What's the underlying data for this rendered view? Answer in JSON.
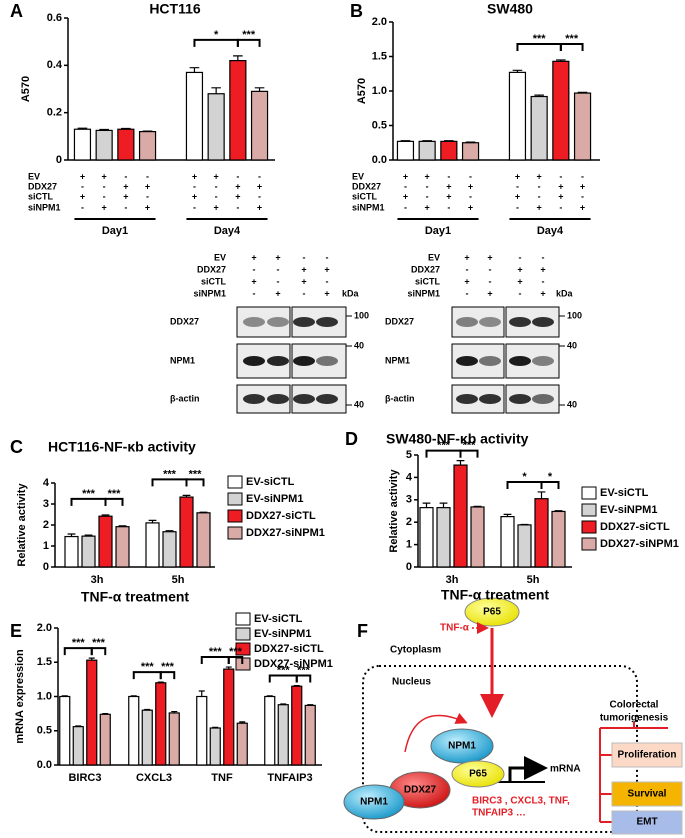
{
  "panel_labels": [
    "A",
    "B",
    "C",
    "D",
    "E",
    "F"
  ],
  "chart_data": [
    {
      "type": "bar",
      "title": "HCT116",
      "ylabel": "A570",
      "categories": [
        "Day1",
        "Day4"
      ],
      "series": [
        {
          "color": "#ffffff",
          "values": [
            0.13,
            0.37
          ],
          "errors": [
            0.004,
            0.02
          ]
        },
        {
          "color": "#d3d3d3",
          "values": [
            0.125,
            0.28
          ],
          "errors": [
            0.004,
            0.025
          ]
        },
        {
          "color": "#ee1d23",
          "values": [
            0.13,
            0.42
          ],
          "errors": [
            0.003,
            0.02
          ]
        },
        {
          "color": "#d9aaa6",
          "values": [
            0.12,
            0.29
          ],
          "errors": [
            0.002,
            0.015
          ]
        }
      ],
      "conditions": [
        {
          "label": "EV",
          "signs": [
            "+",
            "+",
            "-",
            "-",
            "+",
            "+",
            "-",
            "-"
          ]
        },
        {
          "label": "DDX27",
          "signs": [
            "-",
            "-",
            "+",
            "+",
            "-",
            "-",
            "+",
            "+"
          ]
        },
        {
          "label": "siCTL",
          "signs": [
            "+",
            "-",
            "+",
            "-",
            "+",
            "-",
            "+",
            "-"
          ]
        },
        {
          "label": "siNPM1",
          "signs": [
            "-",
            "+",
            "-",
            "+",
            "-",
            "+",
            "-",
            "+"
          ]
        }
      ],
      "annotations": [
        "*",
        "***"
      ],
      "ylim": [
        0,
        0.6
      ],
      "yticks": [
        0,
        0.2,
        0.4,
        0.6
      ]
    },
    {
      "type": "bar",
      "title": "SW480",
      "ylabel": "A570",
      "categories": [
        "Day1",
        "Day4"
      ],
      "series": [
        {
          "color": "#ffffff",
          "values": [
            0.27,
            1.27
          ],
          "errors": [
            0.01,
            0.03
          ]
        },
        {
          "color": "#d3d3d3",
          "values": [
            0.27,
            0.92
          ],
          "errors": [
            0.01,
            0.02
          ]
        },
        {
          "color": "#ee1d23",
          "values": [
            0.27,
            1.43
          ],
          "errors": [
            0.01,
            0.02
          ]
        },
        {
          "color": "#d9aaa6",
          "values": [
            0.25,
            0.97
          ],
          "errors": [
            0.01,
            0.01
          ]
        }
      ],
      "conditions": [
        {
          "label": "EV",
          "signs": [
            "+",
            "+",
            "-",
            "-",
            "+",
            "+",
            "-",
            "-"
          ]
        },
        {
          "label": "DDX27",
          "signs": [
            "-",
            "-",
            "+",
            "+",
            "-",
            "-",
            "+",
            "+"
          ]
        },
        {
          "label": "siCTL",
          "signs": [
            "+",
            "-",
            "+",
            "-",
            "+",
            "-",
            "+",
            "-"
          ]
        },
        {
          "label": "siNPM1",
          "signs": [
            "-",
            "+",
            "-",
            "+",
            "-",
            "+",
            "-",
            "+"
          ]
        }
      ],
      "annotations": [
        "***",
        "***"
      ],
      "ylim": [
        0,
        2
      ],
      "yticks": [
        {
          "value": 0,
          "label": "0.0"
        },
        0.5,
        {
          "value": 1,
          "label": "1.0"
        },
        1.5,
        {
          "value": 2,
          "label": "2.0"
        }
      ]
    },
    {
      "type": "bar",
      "title": "HCT116-NF-κb activity",
      "ylabel": "Relative activity",
      "xlabel": "TNF-α treatment",
      "categories": [
        "3h",
        "5h"
      ],
      "series": [
        {
          "name": "EV-siCTL",
          "color": "#ffffff",
          "values": [
            1.45,
            2.1
          ],
          "errors": [
            0.12,
            0.12
          ]
        },
        {
          "name": "EV-siNPM1",
          "color": "#d3d3d3",
          "values": [
            1.47,
            1.68
          ],
          "errors": [
            0.05,
            0.05
          ]
        },
        {
          "name": "DDX27-siCTL",
          "color": "#ee1d23",
          "values": [
            2.42,
            3.33
          ],
          "errors": [
            0.06,
            0.08
          ]
        },
        {
          "name": "DDX27-siNPM1",
          "color": "#d9aaa6",
          "values": [
            1.92,
            2.58
          ],
          "errors": [
            0.04,
            0.03
          ]
        }
      ],
      "annotations": [
        "***",
        "***",
        "***",
        "***"
      ],
      "ylim": [
        0,
        4
      ],
      "yticks": [
        0,
        1,
        2,
        3,
        4
      ]
    },
    {
      "type": "bar",
      "title": "SW480-NF-κb activity",
      "ylabel": "Relative activity",
      "xlabel": "TNF-α treatment",
      "categories": [
        "3h",
        "5h"
      ],
      "series": [
        {
          "name": "EV-siCTL",
          "color": "#ffffff",
          "values": [
            2.65,
            2.25
          ],
          "errors": [
            0.2,
            0.1
          ]
        },
        {
          "name": "EV-siNPM1",
          "color": "#d3d3d3",
          "values": [
            2.65,
            1.88
          ],
          "errors": [
            0.2,
            0.02
          ]
        },
        {
          "name": "DDX27-siCTL",
          "color": "#ee1d23",
          "values": [
            4.55,
            3.05
          ],
          "errors": [
            0.2,
            0.3
          ]
        },
        {
          "name": "DDX27-siNPM1",
          "color": "#d9aaa6",
          "values": [
            2.68,
            2.48
          ],
          "errors": [
            0.03,
            0.03
          ]
        }
      ],
      "annotations": [
        "***",
        "***",
        "*",
        "*"
      ],
      "ylim": [
        0,
        5
      ],
      "yticks": [
        0,
        1,
        2,
        3,
        4,
        5
      ]
    },
    {
      "type": "bar",
      "ylabel": "mRNA expression",
      "categories": [
        "BIRC3",
        "CXCL3",
        "TNF",
        "TNFAIP3"
      ],
      "series": [
        {
          "name": "EV-siCTL",
          "color": "#ffffff",
          "values": [
            1.0,
            1.0,
            1.0,
            1.0
          ],
          "errors": [
            0.01,
            0.01,
            0.08,
            0.01
          ]
        },
        {
          "name": "EV-siNPM1",
          "color": "#d3d3d3",
          "values": [
            0.56,
            0.8,
            0.54,
            0.88
          ],
          "errors": [
            0.01,
            0.01,
            0.01,
            0.01
          ]
        },
        {
          "name": "DDX27-siCTL",
          "color": "#ee1d23",
          "values": [
            1.53,
            1.2,
            1.4,
            1.15
          ],
          "errors": [
            0.03,
            0.01,
            0.03,
            0.01
          ]
        },
        {
          "name": "DDX27-siNPM1",
          "color": "#d9aaa6",
          "values": [
            0.74,
            0.76,
            0.61,
            0.87
          ],
          "errors": [
            0.01,
            0.02,
            0.02,
            0.01
          ]
        }
      ],
      "annotations": [
        "***",
        "***",
        "***",
        "***",
        "***",
        "***",
        "***",
        "***"
      ],
      "ylim": [
        0,
        2
      ],
      "yticks": [
        {
          "value": 0,
          "label": "0.0"
        },
        0.5,
        {
          "value": 1,
          "label": "1.0"
        },
        1.5,
        {
          "value": 2,
          "label": "2.0"
        }
      ]
    }
  ],
  "blots": [
    {
      "conditions": [
        {
          "label": "EV",
          "signs": [
            "+",
            "+",
            "-",
            "-"
          ]
        },
        {
          "label": "DDX27",
          "signs": [
            "-",
            "-",
            "+",
            "+"
          ]
        },
        {
          "label": "siCTL",
          "signs": [
            "+",
            "-",
            "+",
            "-"
          ]
        },
        {
          "label": "siNPM1",
          "signs": [
            "-",
            "+",
            "-",
            "+"
          ]
        }
      ],
      "unit": "kDa",
      "rows": [
        {
          "label": "DDX27",
          "marker": 100
        },
        {
          "label": "NPM1",
          "marker": 40
        },
        {
          "label": "β-actin",
          "marker": 40
        }
      ]
    },
    {
      "conditions": [
        {
          "label": "EV",
          "signs": [
            "+",
            "+",
            "-",
            "-"
          ]
        },
        {
          "label": "DDX27",
          "signs": [
            "-",
            "-",
            "+",
            "+"
          ]
        },
        {
          "label": "siCTL",
          "signs": [
            "+",
            "-",
            "+",
            "-"
          ]
        },
        {
          "label": "siNPM1",
          "signs": [
            "-",
            "+",
            "-",
            "+"
          ]
        }
      ],
      "unit": "kDa",
      "rows": [
        {
          "label": "DDX27",
          "marker": 100
        },
        {
          "label": "NPM1",
          "marker": 40
        },
        {
          "label": "β-actin",
          "marker": 40
        }
      ]
    }
  ],
  "diagram": {
    "cytoplasm": "Cytoplasm",
    "nucleus": "Nucleus",
    "stimulus": "TNF-α",
    "proteins": [
      "P65",
      "NPM1",
      "P65",
      "DDX27",
      "NPM1"
    ],
    "product": "mRNA",
    "targets": [
      "BIRC3 , CXCL3, TNF,",
      "TNFAIP3 …"
    ],
    "outcome": [
      "Colorectal",
      "tumorigenesis"
    ],
    "processes": [
      "Proliferation",
      "Survival",
      "EMT"
    ]
  }
}
